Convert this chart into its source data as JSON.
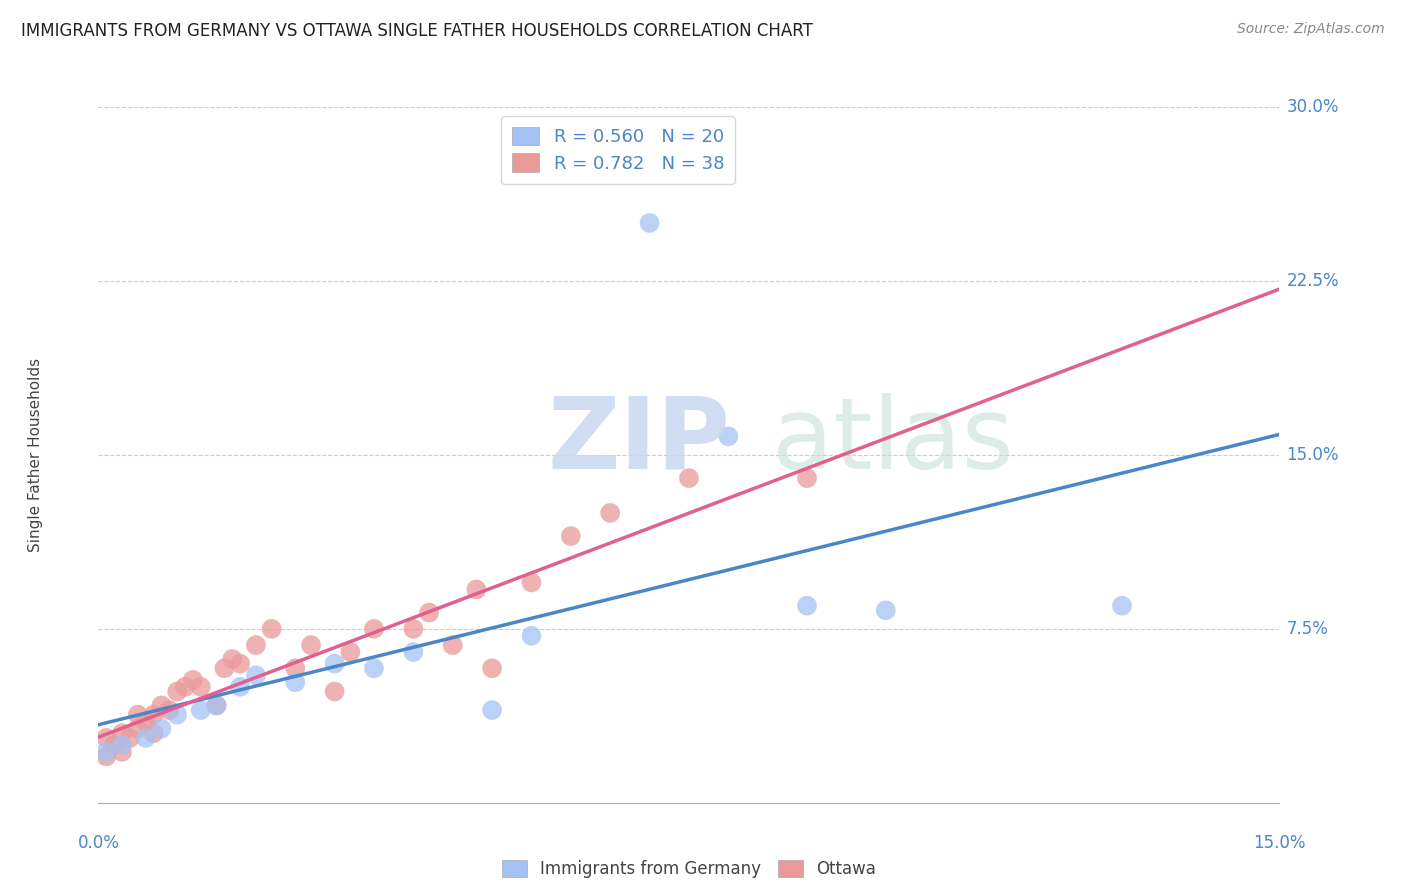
{
  "title": "IMMIGRANTS FROM GERMANY VS OTTAWA SINGLE FATHER HOUSEHOLDS CORRELATION CHART",
  "source": "Source: ZipAtlas.com",
  "ylabel": "Single Father Households",
  "xlim": [
    0.0,
    0.15
  ],
  "ylim": [
    0.0,
    0.3
  ],
  "legend1_R": "0.560",
  "legend1_N": "20",
  "legend2_R": "0.782",
  "legend2_N": "38",
  "blue_color": "#a4c2f4",
  "pink_color": "#ea9999",
  "blue_line_color": "#4a86c8",
  "pink_line_color": "#e06090",
  "background_color": "#ffffff",
  "blue_scatter_x": [
    0.001,
    0.003,
    0.006,
    0.008,
    0.01,
    0.013,
    0.015,
    0.018,
    0.02,
    0.025,
    0.03,
    0.035,
    0.04,
    0.05,
    0.055,
    0.07,
    0.08,
    0.09,
    0.1,
    0.13
  ],
  "blue_scatter_y": [
    0.022,
    0.025,
    0.028,
    0.032,
    0.038,
    0.04,
    0.042,
    0.05,
    0.055,
    0.052,
    0.06,
    0.058,
    0.065,
    0.04,
    0.072,
    0.25,
    0.158,
    0.085,
    0.083,
    0.085
  ],
  "pink_scatter_x": [
    0.001,
    0.001,
    0.002,
    0.003,
    0.003,
    0.004,
    0.005,
    0.005,
    0.006,
    0.007,
    0.007,
    0.008,
    0.009,
    0.01,
    0.011,
    0.012,
    0.013,
    0.015,
    0.016,
    0.017,
    0.018,
    0.02,
    0.022,
    0.025,
    0.027,
    0.03,
    0.032,
    0.035,
    0.04,
    0.042,
    0.045,
    0.048,
    0.05,
    0.055,
    0.06,
    0.065,
    0.075,
    0.09
  ],
  "pink_scatter_y": [
    0.02,
    0.028,
    0.025,
    0.022,
    0.03,
    0.028,
    0.032,
    0.038,
    0.035,
    0.03,
    0.038,
    0.042,
    0.04,
    0.048,
    0.05,
    0.053,
    0.05,
    0.042,
    0.058,
    0.062,
    0.06,
    0.068,
    0.075,
    0.058,
    0.068,
    0.048,
    0.065,
    0.075,
    0.075,
    0.082,
    0.068,
    0.092,
    0.058,
    0.095,
    0.115,
    0.125,
    0.14,
    0.14
  ]
}
